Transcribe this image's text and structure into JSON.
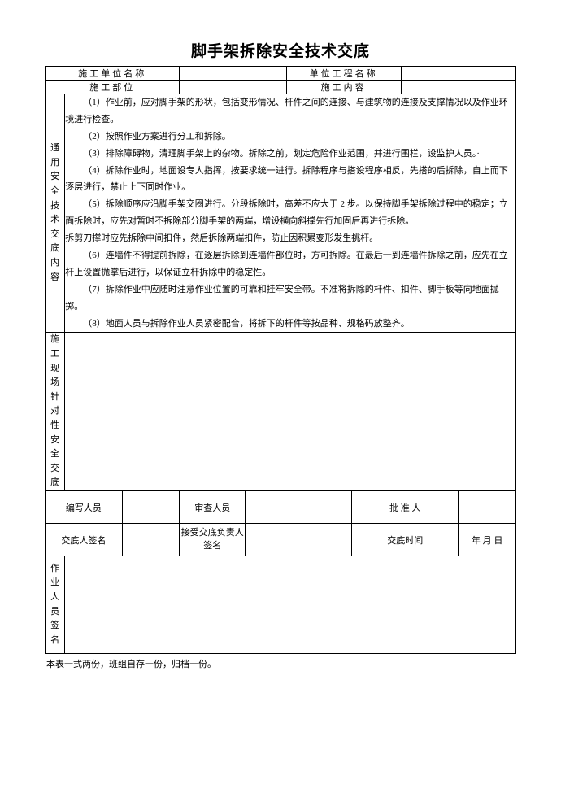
{
  "title": "脚手架拆除安全技术交底",
  "header": {
    "unit_name_label": "施工单位名称",
    "project_name_label": "单位工程名称",
    "location_label": "施工部位",
    "content_label": "施工内容"
  },
  "section1": {
    "label": "通用安全技术交底内容",
    "paragraphs": [
      "（1）作业前，应对脚手架的形状，包括变形情况、杆件之间的连接、与建筑物的连接及支撑情况以及作业环境进行检查。",
      "（2）按照作业方案进行分工和拆除。",
      "（3）排除障碍物，清理脚手架上的杂物。拆除之前，划定危险作业范围，并进行围栏，设监护人员。·",
      "（4）拆除作业时，地面设专人指挥，按要求统一进行。拆除程序与搭设程序相反，先搭的后拆除，自上而下逐层进行，禁止上下同时作业。",
      "（5）拆除顺序应沿脚手架交圈进行。分段拆除时，高差不应大于 2 步。以保持脚手架拆除过程中的稳定；立面拆除时，应先对暂时不拆除部分脚手架的两端，增设横向斜撑先行加固后再进行拆除。",
      "拆剪刀撑时应先拆除中间扣件，然后拆除两端扣件，防止因积累变形发生挑杆。",
      "（6）连墙件不得提前拆除，在逐层拆除到连墙件部位时，方可拆除。在最后一到连墙件拆除之前，应先在立杆上设置抛掌后进行，以保证立杆拆除中的稳定性。",
      "（7）拆除作业中应随时注意作业位置的可靠和挂牢安全带。不准将拆除的杆件、扣件、脚手板等向地面抛掷。",
      "（8）地面人员与拆除作业人员紧密配合，将拆下的杆件等按品种、规格码放整齐。"
    ]
  },
  "section2": {
    "label": "施工现场针对性安全交底"
  },
  "signatures": {
    "writer_label": "编写人员",
    "reviewer_label": "审查人员",
    "approver_label": "批 准 人",
    "disclosure_sign_label": "交底人签名",
    "receiver_sign_label": "接受交底负责人签名",
    "time_label": "交底时间",
    "date_value": "年  月  日",
    "worker_sign_label": "作业人员签名"
  },
  "footnote": "本表一式两份，班组自存一份，归档一份。"
}
